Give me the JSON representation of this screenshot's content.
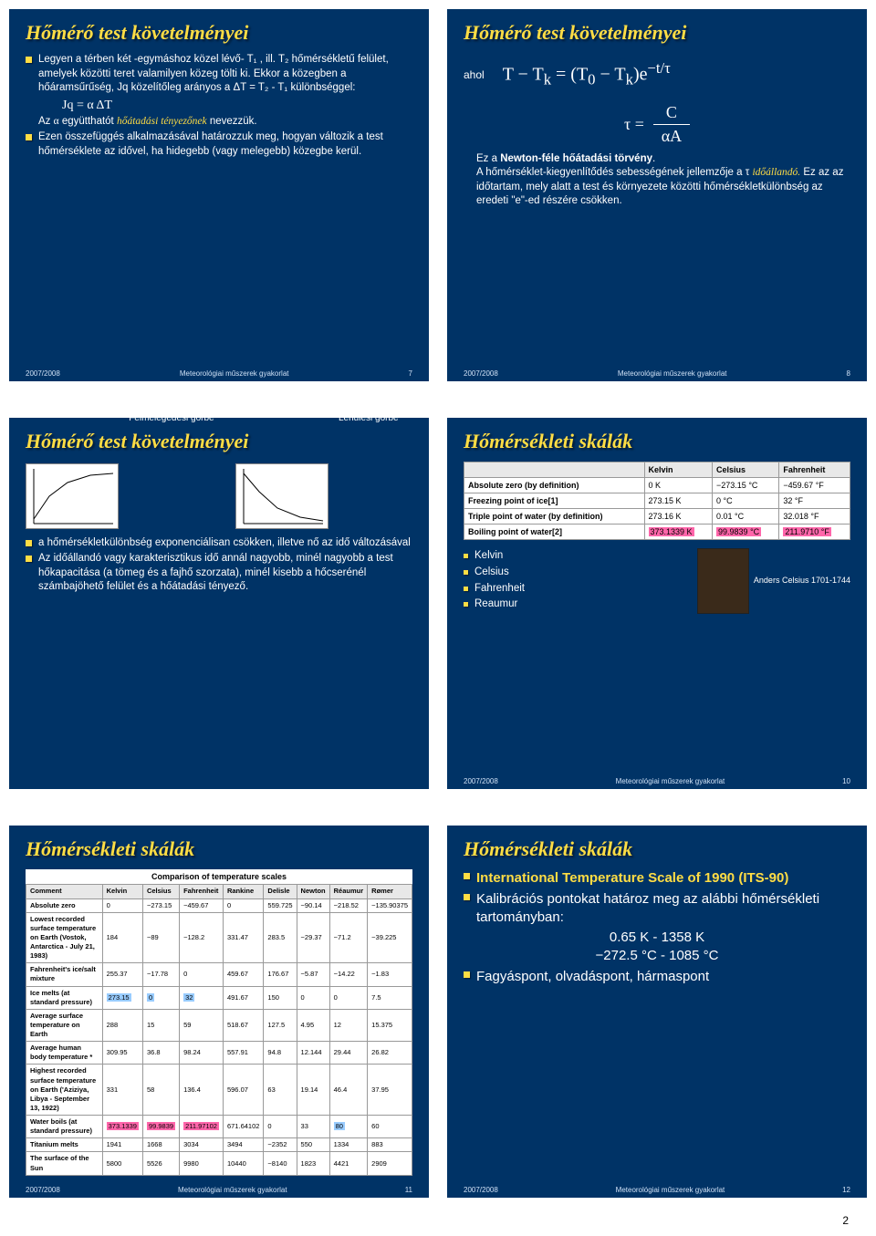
{
  "slides": {
    "s7": {
      "title": "Hőmérő test követelményei",
      "lines": [
        "Legyen a térben két -egymáshoz közel lévő- T₁ , ill. T₂ hőmérsékletű felület, amelyek közötti teret valamilyen közeg tölti ki. Ekkor a közegben a hőáramsűrűség, Jq közelítőleg arányos a ΔT = T₂ - T₁ különbséggel:",
        "Jq = α ΔT",
        "Az α együtthatót hőátadási tényezőnek nevezzük.",
        "Ezen összefüggés alkalmazásával határozzuk meg, hogyan változik a test hőmérséklete az idővel, ha hidegebb (vagy melegebb) közegbe kerül."
      ],
      "footer_left": "2007/2008",
      "footer_mid": "Meteorológiai műszerek gyakorlat",
      "footer_num": "7"
    },
    "s8": {
      "title": "Hőmérő test követelményei",
      "ahol": "ahol",
      "eq1": "T − Tk = (T0 − Tk)e^{−t/τ}",
      "eq2_left": "τ =",
      "eq2_top": "C",
      "eq2_bot": "αA",
      "line1": "Ez a Newton-féle hőátadási törvény.",
      "line2a": "A hőmérséklet-kiegyenlítődés sebességének jellemzője a τ ",
      "line2b": "időállandó.",
      "line2c": " Ez az az időtartam, mely alatt a test és környezete közötti hőmérsékletkülönbség az eredeti \"e\"-ed részére csökken.",
      "footer_left": "2007/2008",
      "footer_mid": "Meteorológiai műszerek gyakorlat",
      "footer_num": "8"
    },
    "s9": {
      "title": "Hőmérő test követelményei",
      "g1": "Felmelegedési görbe",
      "g2": "Lehűlési görbe",
      "b1": "a hőmérsékletkülönbség exponenciálisan csökken, illetve nő az idő változásával",
      "b2": "Az időállandó vagy karakterisztikus idő annál nagyobb, minél nagyobb a test hőkapacitása (a tömeg és a fajhő szorzata), minél kisebb a hőcserénél számbajöhető felület és a hőátadási tényező."
    },
    "s10": {
      "title": "Hőmérsékleti skálák",
      "scales": [
        "Kelvin",
        "Celsius",
        "Fahrenheit",
        "Reaumur"
      ],
      "caption": "Anders Celsius 1701-1744",
      "table": {
        "cols": [
          "",
          "Kelvin",
          "Celsius",
          "Fahrenheit"
        ],
        "rows": [
          [
            "Absolute zero (by definition)",
            "0 K",
            "−273.15 °C",
            "−459.67 °F"
          ],
          [
            "Freezing point of ice[1]",
            "273.15 K",
            "0 °C",
            "32 °F"
          ],
          [
            "Triple point of water (by definition)",
            "273.16 K",
            "0.01 °C",
            "32.018 °F"
          ],
          [
            "Boiling point of water[2]",
            "373.1339 K",
            "99.9839 °C",
            "211.9710 °F"
          ]
        ]
      },
      "footer_left": "2007/2008",
      "footer_mid": "Meteorológiai műszerek gyakorlat",
      "footer_num": "10"
    },
    "s11": {
      "title": "Hőmérsékleti skálák",
      "table_title": "Comparison of temperature scales",
      "cols": [
        "Comment",
        "Kelvin",
        "Celsius",
        "Fahrenheit",
        "Rankine",
        "Delisle",
        "Newton",
        "Réaumur",
        "Rømer"
      ],
      "rows": [
        [
          "Absolute zero",
          "0",
          "−273.15",
          "−459.67",
          "0",
          "559.725",
          "−90.14",
          "−218.52",
          "−135.90375"
        ],
        [
          "Lowest recorded surface temperature on Earth (Vostok, Antarctica - July 21, 1983)",
          "184",
          "−89",
          "−128.2",
          "331.47",
          "283.5",
          "−29.37",
          "−71.2",
          "−39.225"
        ],
        [
          "Fahrenheit's ice/salt mixture",
          "255.37",
          "−17.78",
          "0",
          "459.67",
          "176.67",
          "−5.87",
          "−14.22",
          "−1.83"
        ],
        [
          "Ice melts (at standard pressure)",
          "273.15",
          "0",
          "32",
          "491.67",
          "150",
          "0",
          "0",
          "7.5"
        ],
        [
          "Average surface temperature on Earth",
          "288",
          "15",
          "59",
          "518.67",
          "127.5",
          "4.95",
          "12",
          "15.375"
        ],
        [
          "Average human body temperature *",
          "309.95",
          "36.8",
          "98.24",
          "557.91",
          "94.8",
          "12.144",
          "29.44",
          "26.82"
        ],
        [
          "Highest recorded surface temperature on Earth ('Aziziya, Libya - September 13, 1922)",
          "331",
          "58",
          "136.4",
          "596.07",
          "63",
          "19.14",
          "46.4",
          "37.95"
        ],
        [
          "Water boils (at standard pressure)",
          "373.1339",
          "99.9839",
          "211.97102",
          "671.64102",
          "0",
          "33",
          "80",
          "60"
        ],
        [
          "Titanium melts",
          "1941",
          "1668",
          "3034",
          "3494",
          "−2352",
          "550",
          "1334",
          "883"
        ],
        [
          "The surface of the Sun",
          "5800",
          "5526",
          "9980",
          "10440",
          "−8140",
          "1823",
          "4421",
          "2909"
        ]
      ],
      "footer_left": "2007/2008",
      "footer_mid": "Meteorológiai műszerek gyakorlat",
      "footer_num": "11"
    },
    "s12": {
      "title": "Hőmérsékleti skálák",
      "b1": "International Temperature Scale of 1990 (ITS-90)",
      "b2": "Kalibrációs pontokat határoz meg az alábbi hőmérsékleti tartományban:",
      "r1": "0.65 K - 1358 K",
      "r2": "−272.5 °C - 1085 °C",
      "b3": "Fagyáspont, olvadáspont, hármaspont",
      "footer_left": "2007/2008",
      "footer_mid": "Meteorológiai műszerek gyakorlat",
      "footer_num": "12"
    }
  },
  "pagefoot": "2"
}
